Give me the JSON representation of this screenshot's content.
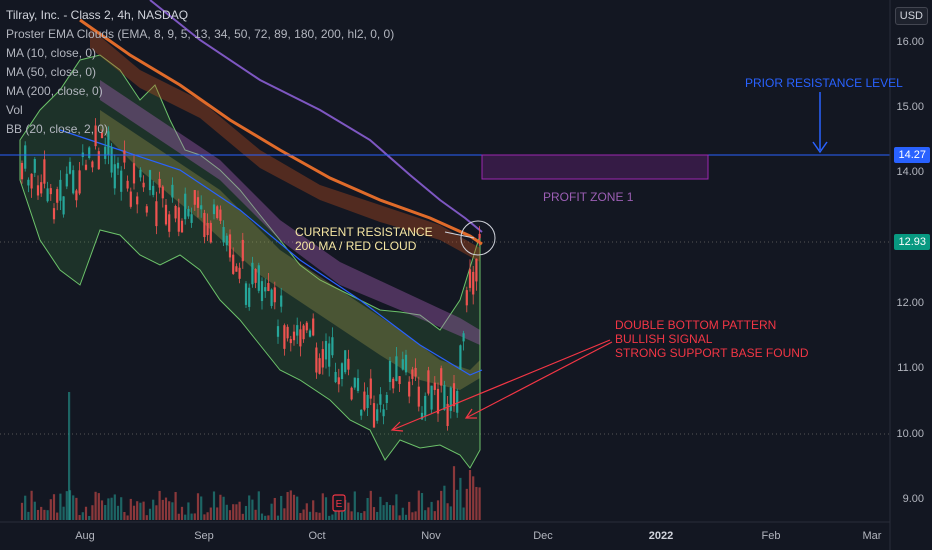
{
  "legend": {
    "title": "Tilray, Inc. - Class 2, 4h, NASDAQ",
    "indicators": [
      "Proster EMA Clouds (EMA, 8, 9, 5, 13, 34, 50, 72, 89, 180, 200, hl2, 0, 0)",
      "MA (10, close, 0)",
      "MA (50, close, 0)",
      "MA (200, close, 0)",
      "Vol",
      "BB (20, close, 2, 0)"
    ]
  },
  "price_axis": {
    "currency": "USD",
    "ticks": [
      "16.00",
      "15.00",
      "14.00",
      "12.00",
      "11.00",
      "10.00",
      "9.00"
    ],
    "resistance_tag": "14.27",
    "last_price_tag": "12.93",
    "resistance_color": "#2962ff",
    "last_price_color": "#089981"
  },
  "time_axis": {
    "labels": [
      {
        "text": "Aug",
        "bold": false
      },
      {
        "text": "Sep",
        "bold": false
      },
      {
        "text": "Oct",
        "bold": false
      },
      {
        "text": "Nov",
        "bold": false
      },
      {
        "text": "Dec",
        "bold": false
      },
      {
        "text": "2022",
        "bold": true
      },
      {
        "text": "Feb",
        "bold": false
      },
      {
        "text": "Mar",
        "bold": false
      }
    ]
  },
  "annotations": {
    "prior_resistance": "PRIOR RESISTANCE LEVEL",
    "profit_zone": "PROFIT ZONE 1",
    "current_resistance": [
      "CURRENT RESISTANCE",
      "200 MA / RED CLOUD"
    ],
    "double_bottom": [
      "DOUBLE BOTTOM PATTERN",
      "BULLISH SIGNAL",
      "STRONG SUPPORT BASE FOUND"
    ]
  },
  "colors": {
    "background": "#131722",
    "up_candle": "#26a69a",
    "down_candle": "#ef5350",
    "resistance_line": "#2962ff",
    "profit_zone": "#9c27b0",
    "annotation_blue": "#2962ff",
    "annotation_red": "#f23645",
    "annotation_yellow": "#f5e6a3"
  }
}
